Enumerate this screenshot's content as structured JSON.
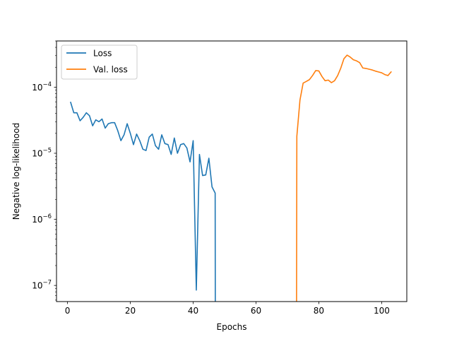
{
  "chart_data": {
    "type": "line",
    "title": "",
    "xlabel": "Epochs",
    "ylabel": "Negative log-likelihood",
    "xlim": [
      -3.5,
      108
    ],
    "ylim": [
      5.7e-08,
      0.0005
    ],
    "yscale": "log",
    "xticks": [
      0,
      20,
      40,
      60,
      80,
      100
    ],
    "yticks": [
      1e-07,
      1e-06,
      1e-05,
      0.0001
    ],
    "ytick_labels": [
      {
        "base": "10",
        "exp": "−7"
      },
      {
        "base": "10",
        "exp": "−6"
      },
      {
        "base": "10",
        "exp": "−5"
      },
      {
        "base": "10",
        "exp": "−4"
      }
    ],
    "grid": false,
    "legend_position": "top-left",
    "series": [
      {
        "name": "Loss",
        "color": "#1f77b4",
        "x": [
          1,
          2,
          3,
          4,
          5,
          6,
          7,
          8,
          9,
          10,
          11,
          12,
          13,
          14,
          15,
          16,
          17,
          18,
          19,
          20,
          21,
          22,
          23,
          24,
          25,
          26,
          27,
          28,
          29,
          30,
          31,
          32,
          33,
          34,
          35,
          36,
          37,
          38,
          39,
          40,
          41,
          42,
          43,
          44,
          45,
          46,
          47,
          47.05
        ],
        "y": [
          5.9e-05,
          4.1e-05,
          4.1e-05,
          3.1e-05,
          3.5e-05,
          4.1e-05,
          3.7e-05,
          2.6e-05,
          3.2e-05,
          3e-05,
          3.3e-05,
          2.4e-05,
          2.8e-05,
          2.9e-05,
          2.9e-05,
          2.2e-05,
          1.55e-05,
          1.9e-05,
          2.8e-05,
          2e-05,
          1.35e-05,
          1.95e-05,
          1.55e-05,
          1.15e-05,
          1.1e-05,
          1.75e-05,
          1.95e-05,
          1.3e-05,
          1.15e-05,
          1.9e-05,
          1.4e-05,
          1.35e-05,
          9.6e-06,
          1.7e-05,
          1e-05,
          1.35e-05,
          1.4e-05,
          1.2e-05,
          7.4e-06,
          1.55e-05,
          8.5e-08,
          9.6e-06,
          4.6e-06,
          4.7e-06,
          8.4e-06,
          3.1e-06,
          2.5e-06,
          1e-10
        ]
      },
      {
        "name": "Val. loss",
        "color": "#ff7f0e",
        "x": [
          72.9,
          73,
          74,
          75,
          76,
          77,
          78,
          79,
          80,
          81,
          82,
          83,
          84,
          85,
          86,
          87,
          88,
          89,
          90,
          91,
          92,
          93,
          94,
          95,
          96,
          97,
          98,
          99,
          100,
          101,
          102,
          103
        ],
        "y": [
          1e-10,
          1.8e-05,
          6.4e-05,
          0.000115,
          0.000122,
          0.00013,
          0.00015,
          0.000178,
          0.000176,
          0.000145,
          0.000125,
          0.000128,
          0.000117,
          0.000125,
          0.00015,
          0.000195,
          0.00027,
          0.000305,
          0.000285,
          0.00026,
          0.00025,
          0.000235,
          0.000195,
          0.000192,
          0.000187,
          0.000182,
          0.000175,
          0.00017,
          0.000165,
          0.000155,
          0.00015,
          0.00017
        ]
      }
    ]
  }
}
